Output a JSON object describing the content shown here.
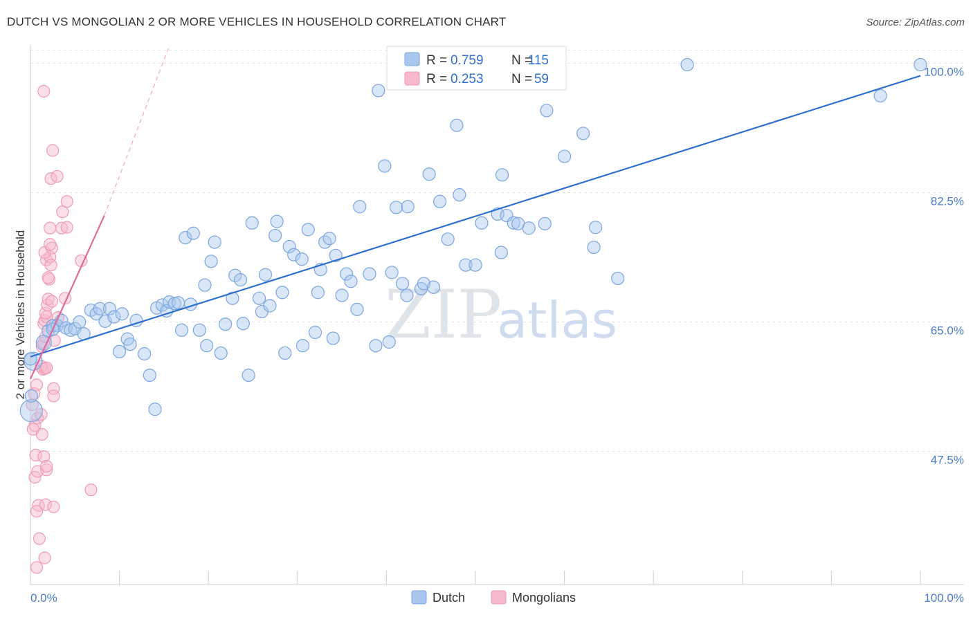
{
  "header": {
    "title": "DUTCH VS MONGOLIAN 2 OR MORE VEHICLES IN HOUSEHOLD CORRELATION CHART",
    "source": "Source: ZipAtlas.com"
  },
  "watermark": {
    "zip": "ZIP",
    "atlas": "atlas"
  },
  "legend": {
    "r_label": "R =",
    "n_label": "N =",
    "dutch": {
      "r": "0.759",
      "n": "115",
      "color": "#a9c7ee"
    },
    "mongolians": {
      "r": "0.253",
      "n": "59",
      "color": "#f6b8cb"
    }
  },
  "colors": {
    "dutch_line": "#2f6fd0",
    "mongolian_line": "#e0689a",
    "tick_text": "#4a7cc7"
  },
  "chart_data": {
    "type": "scatter",
    "title": "DUTCH VS MONGOLIAN 2 OR MORE VEHICLES IN HOUSEHOLD CORRELATION CHART",
    "xlabel": "",
    "ylabel": "2 or more Vehicles in Household",
    "xlim": [
      0,
      100
    ],
    "ylim": [
      29.5,
      102
    ],
    "x_ticks": [
      "0.0%",
      "100.0%"
    ],
    "y_ticks": [
      {
        "value": 47.5,
        "label": "47.5%"
      },
      {
        "value": 65.0,
        "label": "65.0%"
      },
      {
        "value": 82.5,
        "label": "82.5%"
      },
      {
        "value": 100.0,
        "label": "100.0%"
      }
    ],
    "series": [
      {
        "name": "Dutch",
        "trend": {
          "x": [
            0,
            100
          ],
          "y": [
            60.3,
            98.3
          ]
        },
        "points": [
          [
            0.1,
            53.0
          ],
          [
            0.3,
            59.7
          ],
          [
            1.5,
            62.2
          ],
          [
            2.0,
            63.8
          ],
          [
            2.5,
            64.5
          ],
          [
            3.0,
            64.5
          ],
          [
            3.5,
            65.2
          ],
          [
            4.0,
            64.2
          ],
          [
            4.5,
            63.9
          ],
          [
            5.0,
            64.1
          ],
          [
            5.5,
            65.0
          ],
          [
            6.0,
            63.4
          ],
          [
            6.8,
            66.6
          ],
          [
            7.4,
            66.1
          ],
          [
            7.8,
            66.8
          ],
          [
            8.4,
            65.1
          ],
          [
            8.9,
            66.8
          ],
          [
            9.4,
            65.7
          ],
          [
            10.0,
            61.0
          ],
          [
            10.3,
            66.1
          ],
          [
            10.9,
            62.7
          ],
          [
            11.2,
            62.0
          ],
          [
            11.9,
            65.2
          ],
          [
            12.8,
            60.7
          ],
          [
            13.4,
            57.8
          ],
          [
            14.0,
            53.2
          ],
          [
            14.2,
            66.9
          ],
          [
            14.8,
            67.3
          ],
          [
            15.3,
            66.5
          ],
          [
            15.6,
            67.7
          ],
          [
            16.2,
            67.5
          ],
          [
            16.6,
            67.6
          ],
          [
            17.0,
            63.9
          ],
          [
            17.4,
            76.4
          ],
          [
            18.0,
            67.4
          ],
          [
            18.3,
            77.0
          ],
          [
            19.0,
            63.9
          ],
          [
            19.6,
            70.0
          ],
          [
            19.8,
            61.8
          ],
          [
            20.3,
            73.2
          ],
          [
            20.7,
            75.8
          ],
          [
            21.4,
            60.8
          ],
          [
            21.9,
            64.7
          ],
          [
            22.7,
            68.2
          ],
          [
            23.0,
            71.3
          ],
          [
            23.6,
            70.7
          ],
          [
            23.9,
            64.8
          ],
          [
            24.5,
            57.8
          ],
          [
            24.9,
            78.4
          ],
          [
            25.7,
            68.2
          ],
          [
            26.0,
            66.4
          ],
          [
            26.4,
            71.4
          ],
          [
            26.9,
            67.2
          ],
          [
            27.5,
            76.7
          ],
          [
            27.7,
            78.6
          ],
          [
            28.3,
            69.0
          ],
          [
            28.6,
            60.8
          ],
          [
            29.1,
            75.2
          ],
          [
            29.6,
            74.1
          ],
          [
            30.5,
            73.5
          ],
          [
            30.6,
            61.8
          ],
          [
            31.2,
            77.5
          ],
          [
            32.0,
            63.6
          ],
          [
            32.3,
            69.0
          ],
          [
            32.6,
            72.1
          ],
          [
            33.1,
            75.8
          ],
          [
            33.6,
            76.3
          ],
          [
            34.0,
            62.8
          ],
          [
            34.3,
            74.0
          ],
          [
            35.0,
            68.6
          ],
          [
            35.5,
            71.5
          ],
          [
            36.0,
            70.5
          ],
          [
            36.7,
            66.7
          ],
          [
            37.0,
            80.6
          ],
          [
            38.1,
            71.5
          ],
          [
            38.8,
            61.8
          ],
          [
            39.1,
            96.3
          ],
          [
            39.8,
            86.1
          ],
          [
            40.3,
            62.3
          ],
          [
            40.6,
            71.7
          ],
          [
            41.1,
            80.5
          ],
          [
            41.8,
            70.2
          ],
          [
            42.3,
            68.6
          ],
          [
            42.4,
            80.6
          ],
          [
            43.9,
            69.5
          ],
          [
            44.2,
            70.2
          ],
          [
            44.8,
            85.0
          ],
          [
            45.3,
            69.7
          ],
          [
            46.0,
            81.3
          ],
          [
            46.9,
            76.2
          ],
          [
            47.9,
            91.6
          ],
          [
            48.2,
            82.2
          ],
          [
            48.9,
            72.7
          ],
          [
            50.0,
            72.7
          ],
          [
            50.7,
            78.4
          ],
          [
            52.5,
            79.6
          ],
          [
            52.9,
            74.4
          ],
          [
            53.0,
            84.9
          ],
          [
            53.5,
            79.4
          ],
          [
            54.3,
            78.4
          ],
          [
            54.8,
            78.3
          ],
          [
            56.0,
            77.7
          ],
          [
            57.8,
            78.3
          ],
          [
            58.0,
            93.6
          ],
          [
            60.0,
            87.4
          ],
          [
            62.1,
            90.5
          ],
          [
            63.3,
            75.1
          ],
          [
            63.5,
            77.8
          ],
          [
            66.0,
            70.9
          ],
          [
            73.8,
            99.8
          ],
          [
            95.5,
            95.6
          ],
          [
            100.0,
            99.8
          ],
          [
            0.0,
            60.0
          ],
          [
            0.1,
            55.0
          ],
          [
            2.5,
            64.0
          ]
        ],
        "radii": {
          "0": 16,
          "1": 13,
          "2": 11
        }
      },
      {
        "name": "Mongolians",
        "trend": {
          "x": [
            0,
            8.3
          ],
          "y": [
            57.3,
            79.4
          ],
          "dashed_extension": {
            "x": [
              8.3,
              15.5
            ],
            "y": [
              79.4,
              102
            ]
          }
        },
        "points": [
          [
            0.8,
            52.0
          ],
          [
            0.5,
            51.0
          ],
          [
            0.7,
            56.5
          ],
          [
            0.4,
            55.3
          ],
          [
            0.6,
            47.0
          ],
          [
            0.5,
            44.0
          ],
          [
            0.8,
            44.8
          ],
          [
            0.9,
            40.2
          ],
          [
            0.7,
            39.4
          ],
          [
            1.0,
            35.7
          ],
          [
            0.7,
            31.8
          ],
          [
            1.6,
            33.1
          ],
          [
            1.3,
            49.8
          ],
          [
            1.2,
            52.5
          ],
          [
            1.5,
            46.8
          ],
          [
            1.8,
            45.0
          ],
          [
            1.8,
            45.5
          ],
          [
            1.7,
            40.3
          ],
          [
            2.6,
            40.0
          ],
          [
            1.4,
            58.6
          ],
          [
            1.2,
            59.0
          ],
          [
            1.6,
            58.7
          ],
          [
            1.8,
            58.8
          ],
          [
            1.3,
            61.7
          ],
          [
            1.5,
            62.2
          ],
          [
            1.7,
            63.0
          ],
          [
            1.5,
            64.8
          ],
          [
            1.6,
            65.2
          ],
          [
            1.8,
            65.7
          ],
          [
            1.7,
            66.2
          ],
          [
            1.9,
            67.3
          ],
          [
            2.0,
            68.1
          ],
          [
            2.4,
            67.8
          ],
          [
            2.1,
            70.8
          ],
          [
            2.0,
            71.0
          ],
          [
            1.8,
            73.4
          ],
          [
            2.2,
            73.8
          ],
          [
            2.3,
            72.7
          ],
          [
            1.6,
            74.4
          ],
          [
            2.4,
            75.0
          ],
          [
            2.2,
            75.5
          ],
          [
            2.2,
            77.7
          ],
          [
            2.3,
            84.4
          ],
          [
            3.0,
            84.7
          ],
          [
            2.5,
            88.2
          ],
          [
            1.5,
            96.2
          ],
          [
            3.5,
            77.7
          ],
          [
            4.1,
            77.8
          ],
          [
            3.6,
            79.9
          ],
          [
            4.1,
            81.3
          ],
          [
            3.9,
            68.2
          ],
          [
            5.7,
            73.3
          ],
          [
            2.7,
            62.5
          ],
          [
            3.1,
            65.6
          ],
          [
            2.6,
            56.0
          ],
          [
            2.6,
            55.0
          ],
          [
            6.8,
            42.3
          ],
          [
            0.3,
            50.5
          ],
          [
            0.2,
            53.8
          ]
        ]
      }
    ]
  },
  "bottom_legend": {
    "dutch_label": "Dutch",
    "mongolians_label": "Mongolians"
  }
}
